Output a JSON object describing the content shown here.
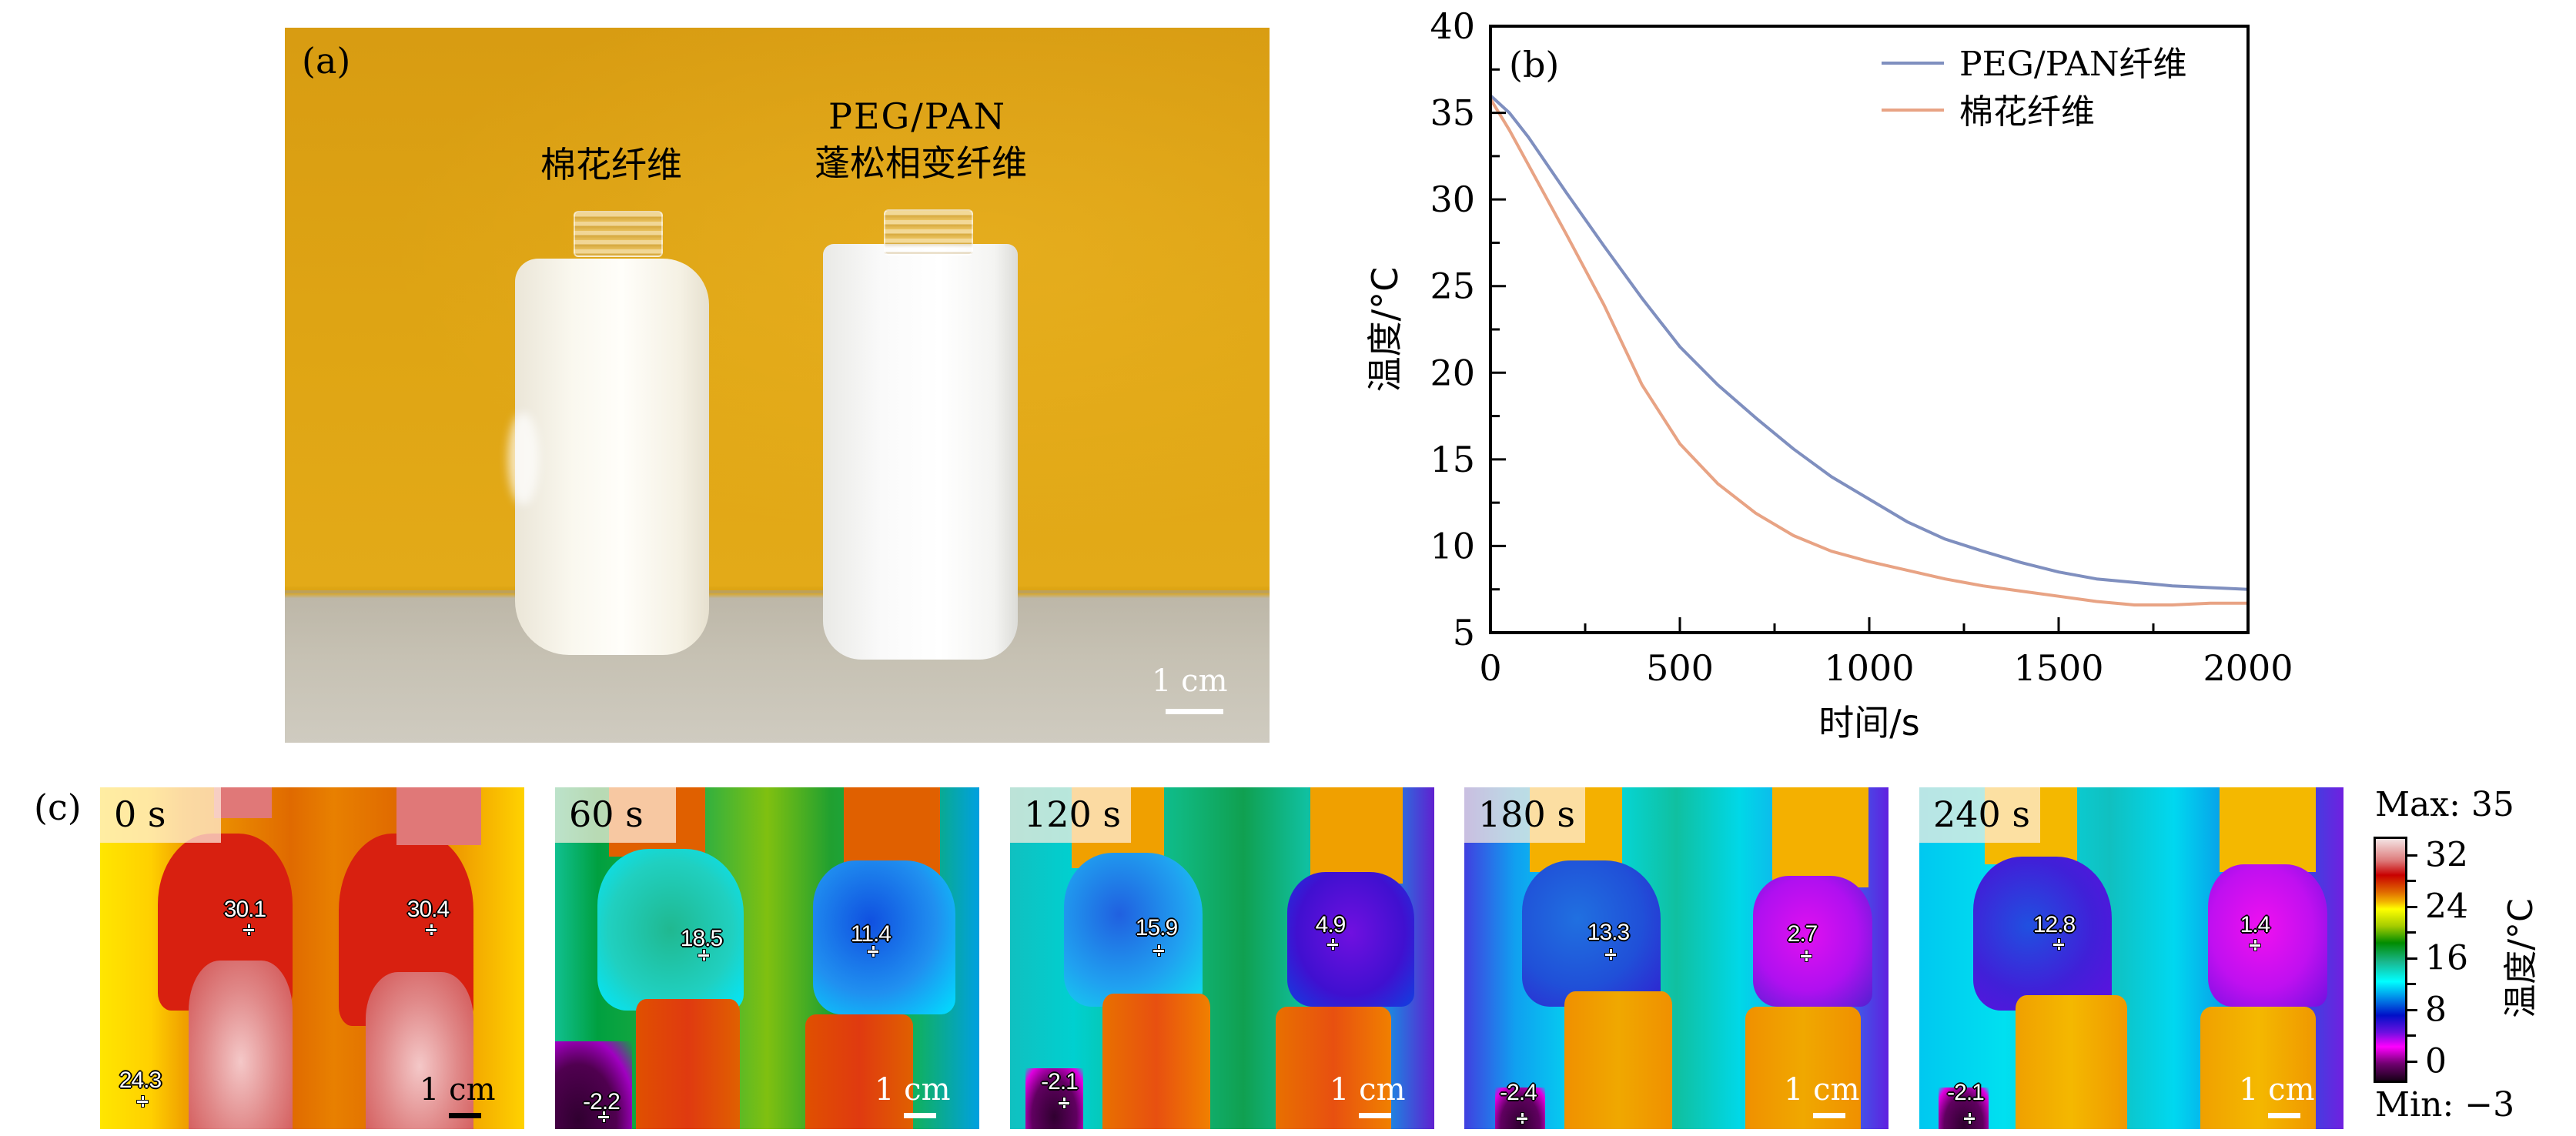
{
  "panel_a": {
    "label": "(a)",
    "cotton_label": "棉花纤维",
    "peg_label_line1": "PEG/PAN",
    "peg_label_line2": "蓬松相变纤维",
    "scale_text": "1 cm"
  },
  "chart_data": {
    "type": "line",
    "panel_label": "(b)",
    "title": "",
    "xlabel": "时间/s",
    "ylabel": "温度/°C",
    "xlim": [
      0,
      2000
    ],
    "ylim": [
      5,
      40
    ],
    "xticks": [
      0,
      500,
      1000,
      1500,
      2000
    ],
    "yticks": [
      5,
      10,
      15,
      20,
      25,
      30,
      35,
      40
    ],
    "x_minor_step": 250,
    "y_minor_step": 2.5,
    "grid": false,
    "legend_position": "top-right",
    "x": [
      0,
      50,
      100,
      200,
      300,
      400,
      500,
      600,
      700,
      800,
      900,
      1000,
      1100,
      1200,
      1300,
      1400,
      1500,
      1600,
      1700,
      1800,
      1900,
      2000
    ],
    "series": [
      {
        "name": "PEG/PAN纤维",
        "color": "#7f8fbf",
        "values": [
          36.0,
          35.0,
          33.6,
          30.4,
          27.3,
          24.3,
          21.5,
          19.3,
          17.4,
          15.6,
          14.0,
          12.7,
          11.4,
          10.4,
          9.7,
          9.05,
          8.5,
          8.1,
          7.9,
          7.7,
          7.6,
          7.5
        ]
      },
      {
        "name": "棉花纤维",
        "color": "#e8a384",
        "values": [
          35.8,
          34.0,
          32.0,
          28.0,
          23.9,
          19.3,
          15.9,
          13.6,
          11.9,
          10.6,
          9.7,
          9.1,
          8.6,
          8.1,
          7.7,
          7.4,
          7.1,
          6.8,
          6.6,
          6.6,
          6.7,
          6.7
        ]
      }
    ]
  },
  "panel_c": {
    "label": "(c)",
    "scale_text": "1 cm",
    "frames": [
      {
        "time": "0 s",
        "left": "30.1",
        "right": "30.4",
        "ref": "24.3"
      },
      {
        "time": "60 s",
        "left": "18.5",
        "right": "11.4",
        "ref": "-2.2"
      },
      {
        "time": "120 s",
        "left": "15.9",
        "right": "4.9",
        "ref": "-2.1"
      },
      {
        "time": "180 s",
        "left": "13.3",
        "right": "2.7",
        "ref": "-2.4"
      },
      {
        "time": "240 s",
        "left": "12.8",
        "right": "1.4",
        "ref": "-2.1"
      }
    ],
    "colorbar": {
      "max_label": "Max: 35",
      "min_label": "Min: −3",
      "ticks": [
        "32",
        "24",
        "16",
        "8",
        "0"
      ],
      "title": "温度/°C"
    }
  }
}
